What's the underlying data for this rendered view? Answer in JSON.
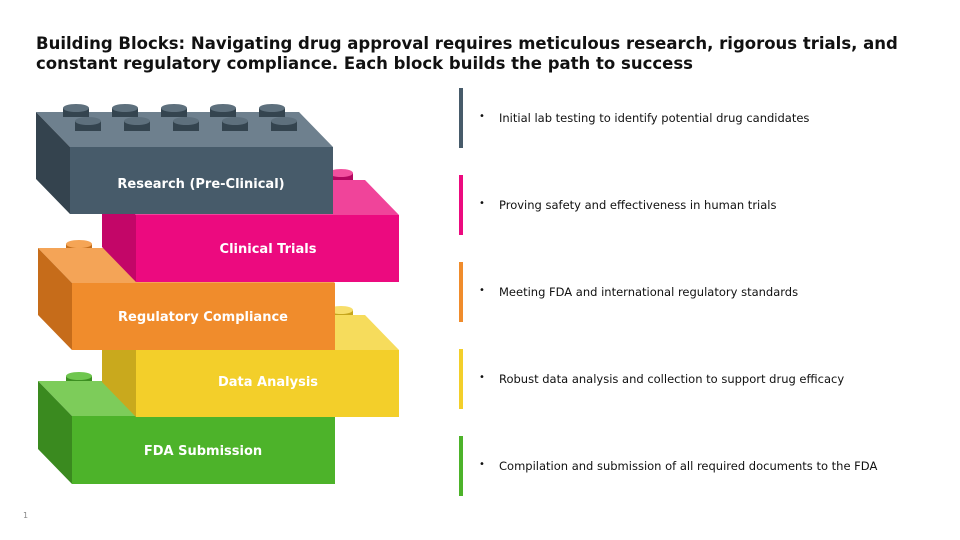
{
  "slide": {
    "title": "Building Blocks: Navigating drug approval requires meticulous research, rigorous trials, and constant regulatory compliance. Each block builds the path to success",
    "page_number": "1"
  },
  "colors": {
    "research": "#475B6A",
    "clinical": "#EC0A7F",
    "regulatory": "#F08C2C",
    "data": "#F3CF2A",
    "fda": "#4DB32A"
  },
  "blocks": [
    {
      "label": "Research (Pre-Clinical)",
      "description": "Initial lab testing to identify potential drug candidates"
    },
    {
      "label": "Clinical Trials",
      "description": "Proving safety and effectiveness in human trials"
    },
    {
      "label": "Regulatory Compliance",
      "description": "Meeting FDA and international regulatory standards"
    },
    {
      "label": "Data Analysis",
      "description": "Robust data analysis and collection to support drug efficacy"
    },
    {
      "label": "FDA Submission",
      "description": "Compilation and submission of all required documents to the FDA"
    }
  ]
}
